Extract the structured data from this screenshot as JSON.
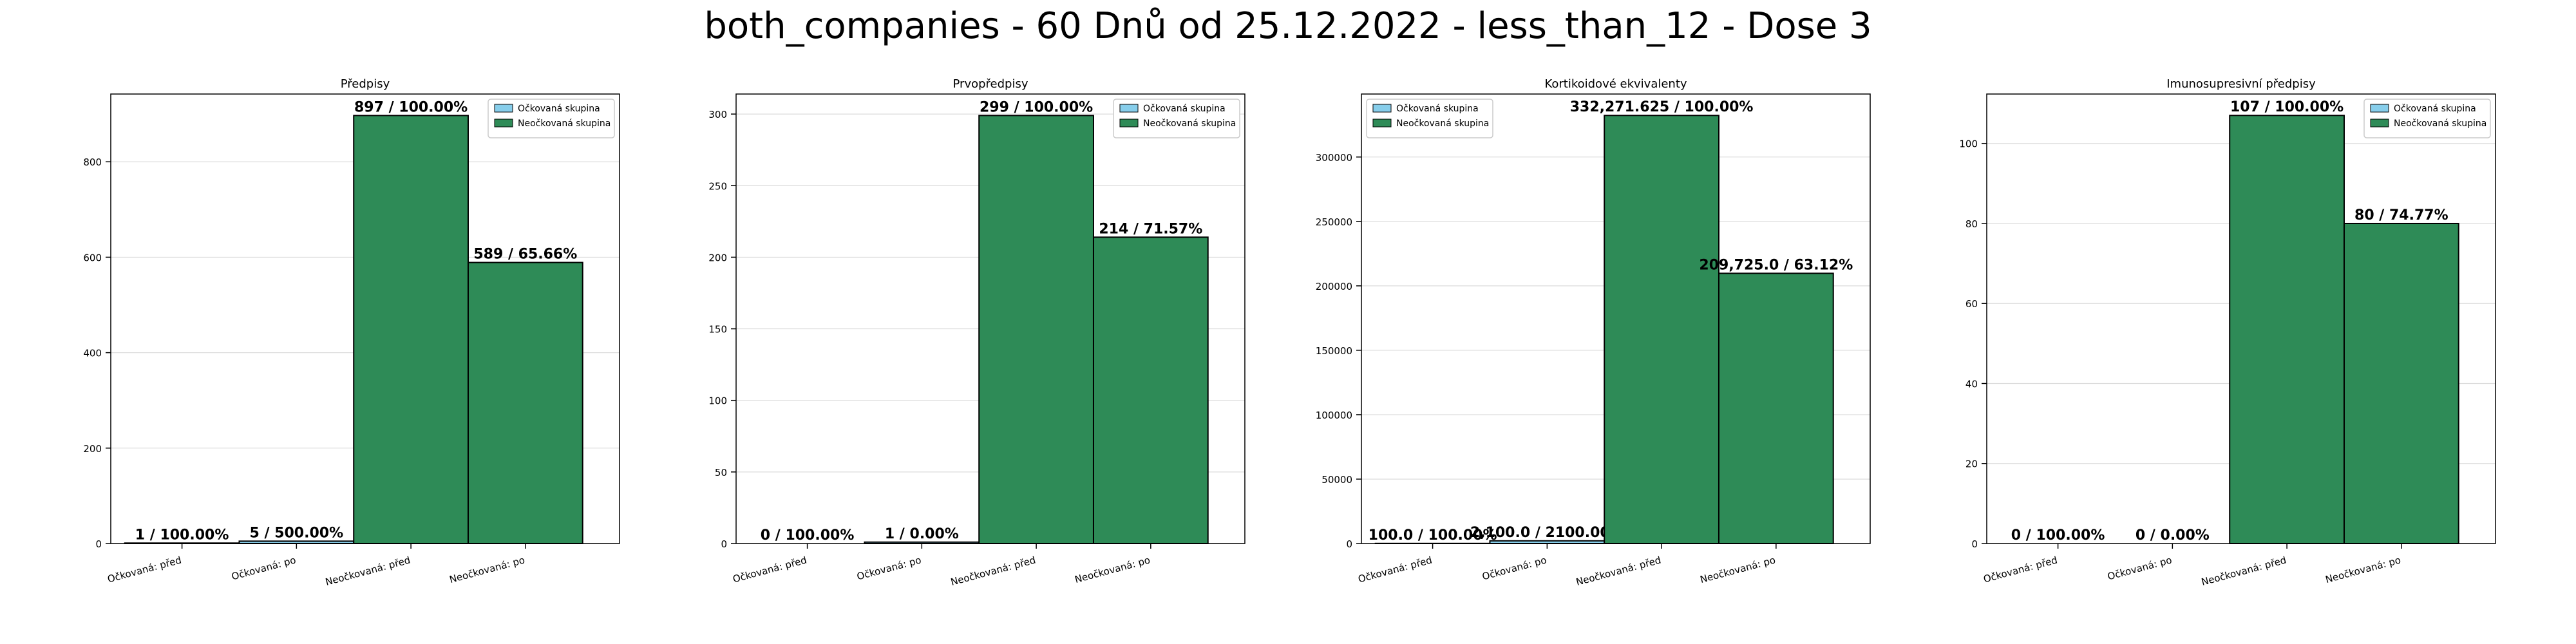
{
  "figure_title": "both_companies - 60 Dnů od 25.12.2022 - less_than_12 - Dose 3",
  "colors": {
    "vaccinated": "#87CEEB",
    "unvaccinated": "#2E8B57",
    "edge": "#000000"
  },
  "chart_data": [
    {
      "type": "bar",
      "title": "Předpisy",
      "categories": [
        "Očkovaná: před",
        "Očkovaná: po",
        "Neočkovaná: před",
        "Neočkovaná: po"
      ],
      "values": [
        1,
        5,
        897,
        589
      ],
      "bar_labels": [
        "1 / 100.00%",
        "5 / 500.00%",
        "897 / 100.00%",
        "589 / 65.66%"
      ],
      "series_of_bar": [
        "Očkovaná skupina",
        "Očkovaná skupina",
        "Neočkovaná skupina",
        "Neočkovaná skupina"
      ],
      "legend": [
        "Očkovaná skupina",
        "Neočkovaná skupina"
      ],
      "legend_position": "top-right",
      "ylim": [
        0,
        942
      ],
      "yticks": [
        0,
        200,
        400,
        600,
        800
      ],
      "ytick_labels": [
        "0",
        "200",
        "400",
        "600",
        "800"
      ],
      "grid": "y"
    },
    {
      "type": "bar",
      "title": "Prvopředpisy",
      "categories": [
        "Očkovaná: před",
        "Očkovaná: po",
        "Neočkovaná: před",
        "Neočkovaná: po"
      ],
      "values": [
        0,
        1,
        299,
        214
      ],
      "bar_labels": [
        "0 / 100.00%",
        "1 / 0.00%",
        "299 / 100.00%",
        "214 / 71.57%"
      ],
      "series_of_bar": [
        "Očkovaná skupina",
        "Očkovaná skupina",
        "Neočkovaná skupina",
        "Neočkovaná skupina"
      ],
      "legend": [
        "Očkovaná skupina",
        "Neočkovaná skupina"
      ],
      "legend_position": "top-right",
      "ylim": [
        0,
        314
      ],
      "yticks": [
        0,
        50,
        100,
        150,
        200,
        250,
        300
      ],
      "ytick_labels": [
        "0",
        "50",
        "100",
        "150",
        "200",
        "250",
        "300"
      ],
      "grid": "y"
    },
    {
      "type": "bar",
      "title": "Kortikoidové ekvivalenty",
      "categories": [
        "Očkovaná: před",
        "Očkovaná: po",
        "Neočkovaná: před",
        "Neočkovaná: po"
      ],
      "values": [
        100.0,
        2100.0,
        332271.625,
        209725.0
      ],
      "bar_labels": [
        "100.0 / 100.00%",
        "2,100.0 / 2100.00%",
        "332,271.625 / 100.00%",
        "209,725.0 / 63.12%"
      ],
      "series_of_bar": [
        "Očkovaná skupina",
        "Očkovaná skupina",
        "Neočkovaná skupina",
        "Neočkovaná skupina"
      ],
      "legend": [
        "Očkovaná skupina",
        "Neočkovaná skupina"
      ],
      "legend_position": "top-left",
      "ylim": [
        0,
        348885
      ],
      "yticks": [
        0,
        50000,
        100000,
        150000,
        200000,
        250000,
        300000
      ],
      "ytick_labels": [
        "0",
        "50000",
        "100000",
        "150000",
        "200000",
        "250000",
        "300000"
      ],
      "grid": "y"
    },
    {
      "type": "bar",
      "title": "Imunosupresivní předpisy",
      "categories": [
        "Očkovaná: před",
        "Očkovaná: po",
        "Neočkovaná: před",
        "Neočkovaná: po"
      ],
      "values": [
        0,
        0,
        107,
        80
      ],
      "bar_labels": [
        "0 / 100.00%",
        "0 / 0.00%",
        "107 / 100.00%",
        "80 / 74.77%"
      ],
      "series_of_bar": [
        "Očkovaná skupina",
        "Očkovaná skupina",
        "Neočkovaná skupina",
        "Neočkovaná skupina"
      ],
      "legend": [
        "Očkovaná skupina",
        "Neočkovaná skupina"
      ],
      "legend_position": "top-right",
      "ylim": [
        0,
        112.35
      ],
      "yticks": [
        0,
        20,
        40,
        60,
        80,
        100
      ],
      "ytick_labels": [
        "0",
        "20",
        "40",
        "60",
        "80",
        "100"
      ],
      "grid": "y"
    }
  ]
}
